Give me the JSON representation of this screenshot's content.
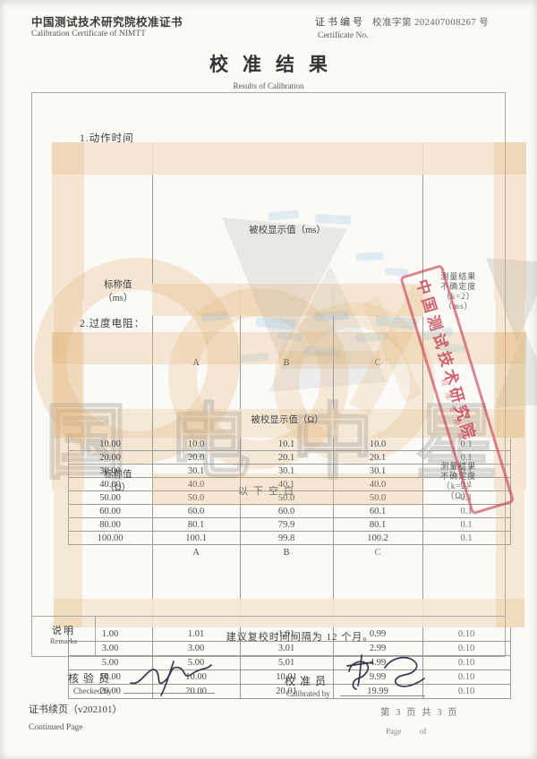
{
  "header": {
    "org_cn": "中国测试技术研究院校准证书",
    "org_en": "Calibration Certificate of NIMTT",
    "cert_label_cn": "证书编号",
    "cert_value": "校准字第 202407008267 号",
    "cert_label_en": "Certificate No."
  },
  "title": {
    "cn": "校准结果",
    "en": "Results of Calibration"
  },
  "section1": {
    "heading": "1.动作时间",
    "table": {
      "nominal_label": "标称值",
      "nominal_unit": "（ms）",
      "span_header": "被校显示值（ms）",
      "sub_a": "A",
      "sub_b": "B",
      "sub_c": "C",
      "unc_lines": [
        "测量结果",
        "不确定度",
        "（k=2）",
        "（ms）"
      ],
      "rows": [
        [
          "10.00",
          "10.0",
          "10.1",
          "10.0",
          "0.1"
        ],
        [
          "20.00",
          "20.0",
          "20.1",
          "20.1",
          "0.1"
        ],
        [
          "30.00",
          "30.1",
          "30.1",
          "30.1",
          "0.1"
        ],
        [
          "40.00",
          "40.0",
          "40.1",
          "40.0",
          "0.1"
        ],
        [
          "50.00",
          "50.0",
          "50.0",
          "50.0",
          "0.1"
        ],
        [
          "60.00",
          "60.0",
          "60.0",
          "60.1",
          "0.1"
        ],
        [
          "80.00",
          "80.1",
          "79.9",
          "80.1",
          "0.1"
        ],
        [
          "100.00",
          "100.1",
          "99.8",
          "100.2",
          "0.1"
        ]
      ]
    }
  },
  "section2": {
    "heading": "2.过度电阻：",
    "table": {
      "nominal_label": "标称值",
      "nominal_unit": "（Ω）",
      "span_header": "被校显示值（Ω）",
      "sub_a": "A",
      "sub_b": "B",
      "sub_c": "C",
      "unc_lines": [
        "测量结果",
        "不确定度",
        "（k=2）",
        "（Ω）"
      ],
      "rows": [
        [
          "1.00",
          "1.01",
          "1.01",
          "0.99",
          "0.10"
        ],
        [
          "3.00",
          "3.00",
          "3.01",
          "2.99",
          "0.10"
        ],
        [
          "5.00",
          "5.00",
          "5.01",
          "4.99",
          "0.10"
        ],
        [
          "10.00",
          "10.00",
          "10.01",
          "9.99",
          "0.10"
        ],
        [
          "20.00",
          "20.00",
          "20.01",
          "19.99",
          "0.10"
        ]
      ]
    }
  },
  "blank_note": "以下空白",
  "remarks": {
    "label_cn": "说明",
    "label_en": "Remarks",
    "text": "建议复校时间间隔为 12 个月。"
  },
  "signatures": {
    "checked_cn": "核验员",
    "checked_en": "Checked by",
    "calibrated_cn": "校准员",
    "calibrated_en": "Calibrated by"
  },
  "footer": {
    "left_cn": "证书续页（v202101）",
    "left_en": "Continued Page",
    "page_info_cn": "第 3 页 共 3 页",
    "page_en": "Page",
    "of_en": "of"
  },
  "stamp": {
    "main_text": "中国测试技术研究院",
    "sub_text": "校准专用章",
    "color": "#c5394d"
  },
  "watermark": {
    "text": "国电中星",
    "accent_color": "#e2b478"
  }
}
